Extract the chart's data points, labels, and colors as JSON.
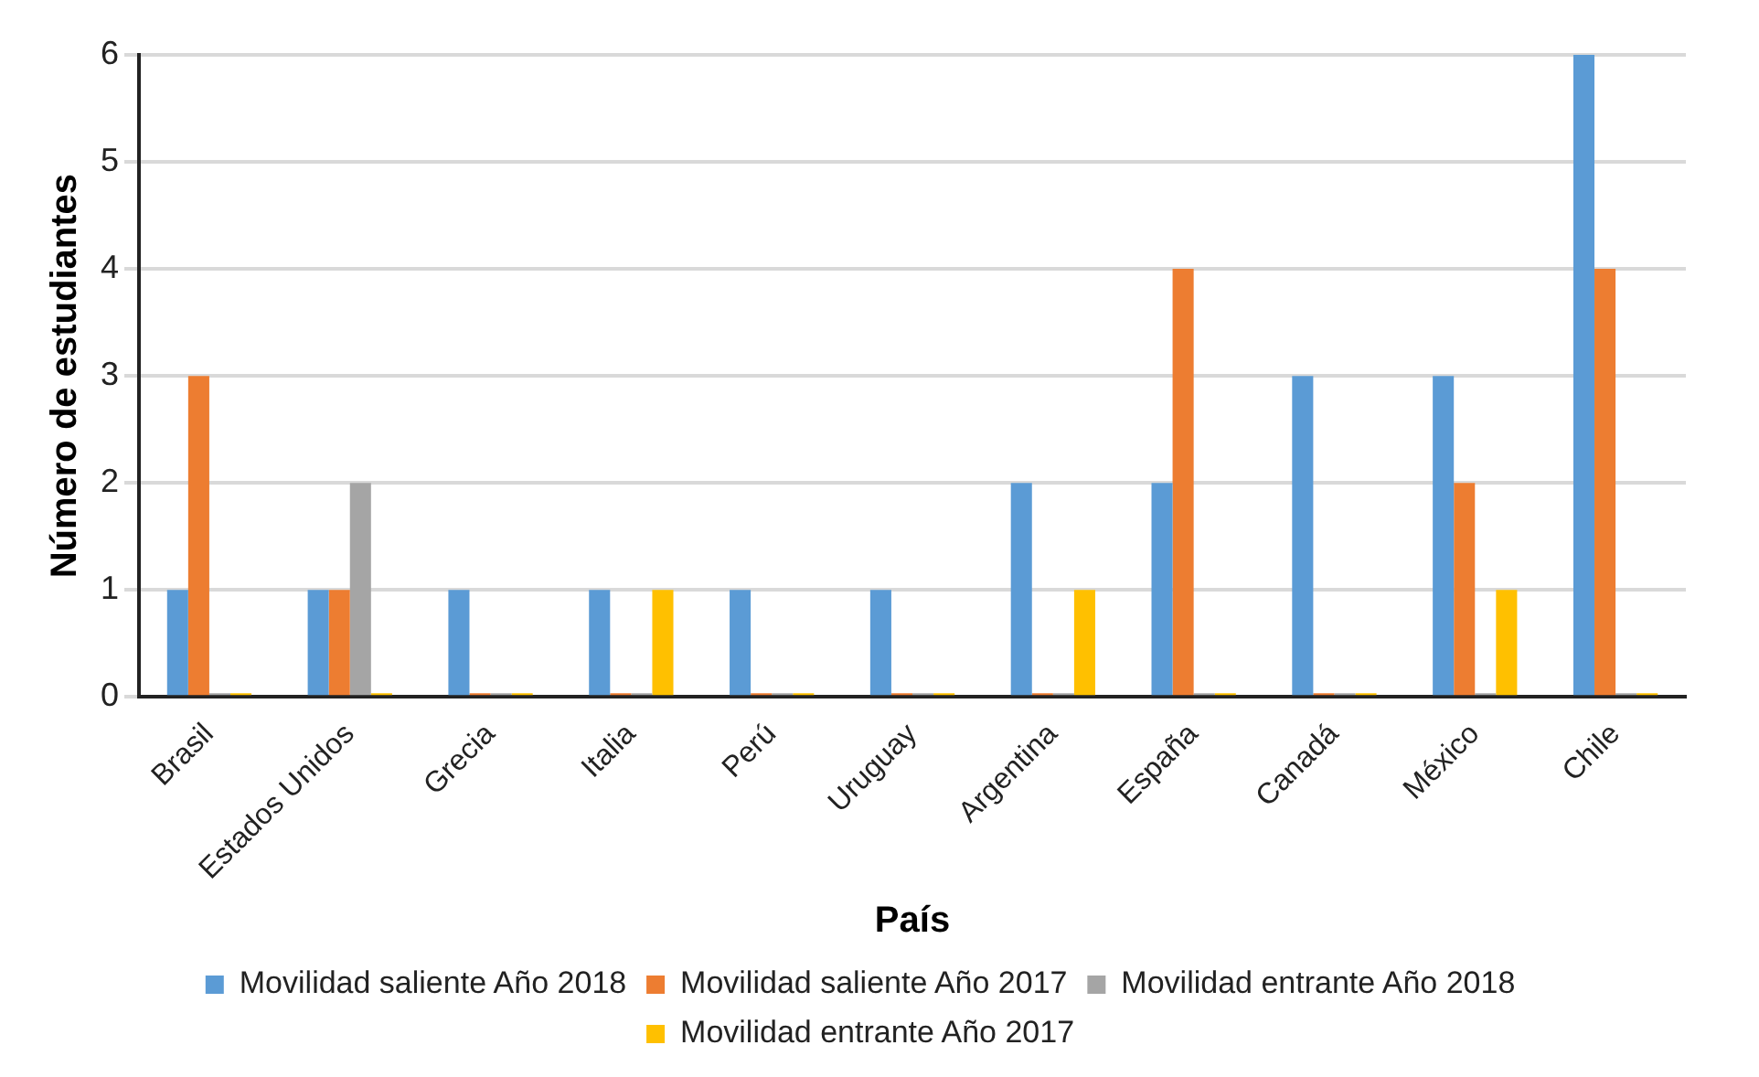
{
  "chart_data": {
    "type": "bar",
    "xlabel": "País",
    "ylabel": "Número de estudiantes",
    "categories": [
      "Brasil",
      "Estados Unidos",
      "Grecia",
      "Italia",
      "Perú",
      "Uruguay",
      "Argentina",
      "España",
      "Canadá",
      "México",
      "Chile"
    ],
    "series": [
      {
        "name": "Movilidad saliente Año 2018",
        "color": "#5b9bd5",
        "values": [
          1,
          1,
          1,
          1,
          1,
          1,
          2,
          2,
          3,
          3,
          6
        ]
      },
      {
        "name": "Movilidad saliente Año 2017",
        "color": "#ed7d31",
        "values": [
          3,
          1,
          0,
          0,
          0,
          0,
          0,
          4,
          0,
          2,
          4
        ]
      },
      {
        "name": "Movilidad entrante Año 2018",
        "color": "#a5a5a5",
        "values": [
          0,
          2,
          0,
          0,
          0,
          0,
          0,
          0,
          0,
          0,
          0
        ]
      },
      {
        "name": "Movilidad entrante Año 2017",
        "color": "#ffc000",
        "values": [
          0,
          0,
          0,
          1,
          0,
          0,
          1,
          0,
          0,
          1,
          0
        ]
      }
    ],
    "ylim": [
      0,
      6
    ],
    "yticks": [
      0,
      1,
      2,
      3,
      4,
      5,
      6
    ],
    "grid": "y",
    "legend": "bottom"
  }
}
